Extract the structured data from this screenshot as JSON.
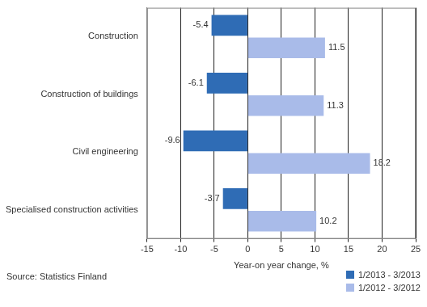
{
  "chart_data": {
    "type": "bar",
    "orientation": "horizontal",
    "categories": [
      "Construction",
      "Construction of buildings",
      "Civil engineering",
      "Specialised construction activities"
    ],
    "series": [
      {
        "name": "1/2013 - 3/2013",
        "color": "#2f6cb5",
        "values": [
          -5.4,
          -6.1,
          -9.6,
          -3.7
        ]
      },
      {
        "name": "1/2012 - 3/2012",
        "color": "#a9bbe9",
        "values": [
          11.5,
          11.3,
          18.2,
          10.2
        ]
      }
    ],
    "x_label": "Year-on year change, %",
    "xlim": [
      -15,
      25
    ],
    "xticks": [
      -15,
      -10,
      -5,
      0,
      5,
      10,
      15,
      20,
      25
    ],
    "grid": true,
    "data_labels": true,
    "legend": "bottom right",
    "annotations": [
      "Source: Statistics Finland"
    ]
  }
}
